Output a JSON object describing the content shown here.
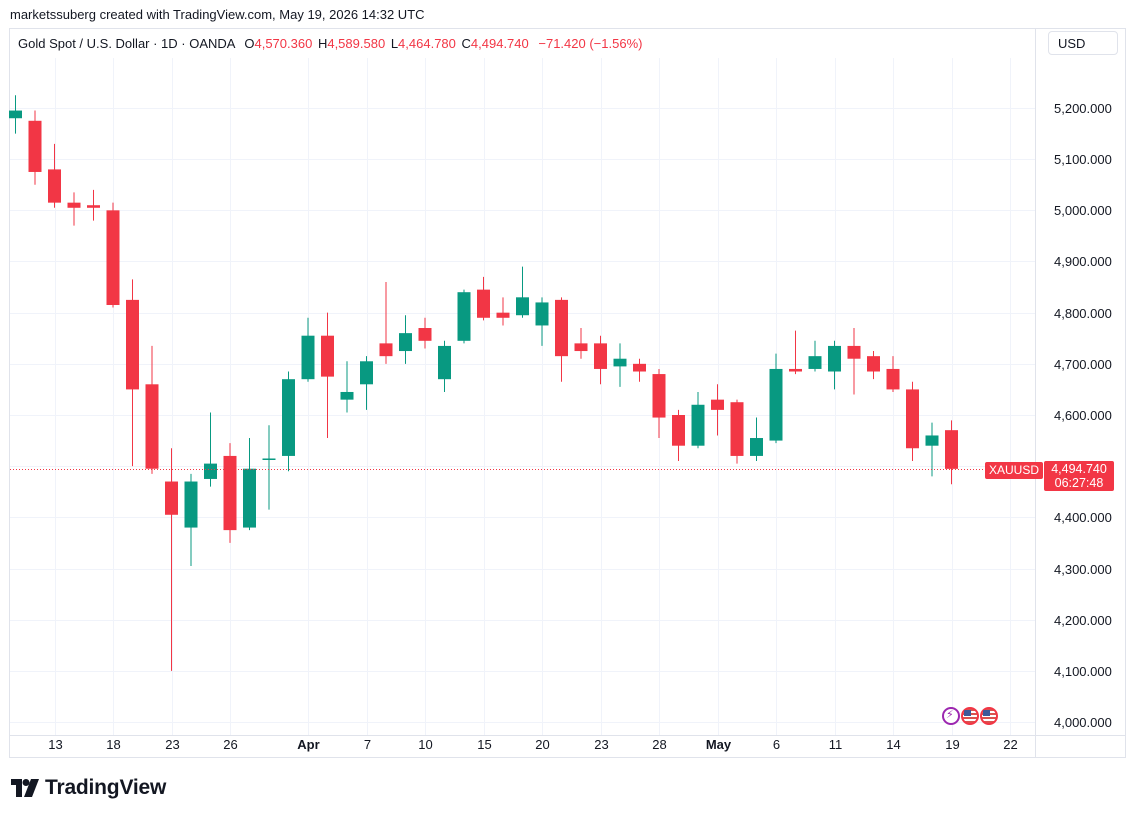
{
  "credit": "marketssuberg created with TradingView.com, May 19, 2026 14:32 UTC",
  "legend": {
    "symbol": "Gold Spot / U.S. Dollar · 1D · OANDA",
    "o_label": "O",
    "o_value": "4,570.360",
    "h_label": "H",
    "h_value": "4,589.580",
    "l_label": "L",
    "l_value": "4,464.780",
    "c_label": "C",
    "c_value": "4,494.740",
    "change": "−71.420 (−1.56%)"
  },
  "currency_button": "USD",
  "last_price": {
    "symbol": "XAUUSD",
    "price": "4,494.740",
    "countdown": "06:27:48",
    "value": 4494.74
  },
  "branding": "TradingView",
  "colors": {
    "up": "#089981",
    "down": "#f23645",
    "grid": "#f0f3fa",
    "text": "#131722",
    "border": "#e0e3eb"
  },
  "event_icons": [
    "bolt-icon",
    "us-flag-icon",
    "us-flag-icon"
  ],
  "chart_data": {
    "type": "candlestick",
    "title": "Gold Spot / U.S. Dollar · 1D · OANDA",
    "ylim": [
      3955,
      5290
    ],
    "y_ticks": [
      4000,
      4100,
      4200,
      4300,
      4400,
      4500,
      4600,
      4700,
      4800,
      4900,
      5000,
      5100,
      5200
    ],
    "y_tick_labels": [
      "4,000.000",
      "4,100.000",
      "4,200.000",
      "4,300.000",
      "4,400.000",
      "4,500.000",
      "4,600.000",
      "4,700.000",
      "4,800.000",
      "4,900.000",
      "5,000.000",
      "5,100.000",
      "5,200.000"
    ],
    "x_ticks": [
      {
        "i": 2,
        "label": "13",
        "bold": false
      },
      {
        "i": 5,
        "label": "18",
        "bold": false
      },
      {
        "i": 8,
        "label": "23",
        "bold": false
      },
      {
        "i": 11,
        "label": "26",
        "bold": false
      },
      {
        "i": 15,
        "label": "Apr",
        "bold": true
      },
      {
        "i": 18,
        "label": "7",
        "bold": false
      },
      {
        "i": 21,
        "label": "10",
        "bold": false
      },
      {
        "i": 24,
        "label": "15",
        "bold": false
      },
      {
        "i": 27,
        "label": "20",
        "bold": false
      },
      {
        "i": 30,
        "label": "23",
        "bold": false
      },
      {
        "i": 33,
        "label": "28",
        "bold": false
      },
      {
        "i": 36,
        "label": "May",
        "bold": true
      },
      {
        "i": 39,
        "label": "6",
        "bold": false
      },
      {
        "i": 42,
        "label": "11",
        "bold": false
      },
      {
        "i": 45,
        "label": "14",
        "bold": false
      },
      {
        "i": 48,
        "label": "19",
        "bold": false
      },
      {
        "i": 51,
        "label": "22",
        "bold": false
      }
    ],
    "candles": [
      {
        "o": 5180,
        "h": 5225,
        "l": 5150,
        "c": 5195
      },
      {
        "o": 5175,
        "h": 5195,
        "l": 5050,
        "c": 5075
      },
      {
        "o": 5080,
        "h": 5130,
        "l": 5005,
        "c": 5015
      },
      {
        "o": 5015,
        "h": 5035,
        "l": 4970,
        "c": 5005
      },
      {
        "o": 5010,
        "h": 5040,
        "l": 4980,
        "c": 5005
      },
      {
        "o": 5000,
        "h": 5015,
        "l": 4810,
        "c": 4815
      },
      {
        "o": 4825,
        "h": 4865,
        "l": 4500,
        "c": 4650
      },
      {
        "o": 4660,
        "h": 4735,
        "l": 4485,
        "c": 4495
      },
      {
        "o": 4470,
        "h": 4535,
        "l": 4100,
        "c": 4405
      },
      {
        "o": 4380,
        "h": 4485,
        "l": 4305,
        "c": 4470
      },
      {
        "o": 4475,
        "h": 4605,
        "l": 4460,
        "c": 4505
      },
      {
        "o": 4520,
        "h": 4545,
        "l": 4350,
        "c": 4375
      },
      {
        "o": 4380,
        "h": 4555,
        "l": 4375,
        "c": 4495
      },
      {
        "o": 4515,
        "h": 4580,
        "l": 4415,
        "c": 4515
      },
      {
        "o": 4520,
        "h": 4685,
        "l": 4490,
        "c": 4670
      },
      {
        "o": 4670,
        "h": 4790,
        "l": 4665,
        "c": 4755
      },
      {
        "o": 4755,
        "h": 4800,
        "l": 4555,
        "c": 4675
      },
      {
        "o": 4630,
        "h": 4705,
        "l": 4605,
        "c": 4645
      },
      {
        "o": 4660,
        "h": 4715,
        "l": 4610,
        "c": 4705
      },
      {
        "o": 4740,
        "h": 4860,
        "l": 4700,
        "c": 4715
      },
      {
        "o": 4725,
        "h": 4795,
        "l": 4700,
        "c": 4760
      },
      {
        "o": 4770,
        "h": 4790,
        "l": 4730,
        "c": 4745
      },
      {
        "o": 4670,
        "h": 4745,
        "l": 4645,
        "c": 4735
      },
      {
        "o": 4745,
        "h": 4845,
        "l": 4740,
        "c": 4840
      },
      {
        "o": 4845,
        "h": 4870,
        "l": 4785,
        "c": 4790
      },
      {
        "o": 4800,
        "h": 4830,
        "l": 4775,
        "c": 4790
      },
      {
        "o": 4795,
        "h": 4890,
        "l": 4790,
        "c": 4830
      },
      {
        "o": 4775,
        "h": 4830,
        "l": 4735,
        "c": 4820
      },
      {
        "o": 4825,
        "h": 4830,
        "l": 4665,
        "c": 4715
      },
      {
        "o": 4740,
        "h": 4770,
        "l": 4710,
        "c": 4725
      },
      {
        "o": 4740,
        "h": 4755,
        "l": 4660,
        "c": 4690
      },
      {
        "o": 4695,
        "h": 4740,
        "l": 4655,
        "c": 4710
      },
      {
        "o": 4700,
        "h": 4710,
        "l": 4665,
        "c": 4685
      },
      {
        "o": 4680,
        "h": 4690,
        "l": 4555,
        "c": 4595
      },
      {
        "o": 4600,
        "h": 4610,
        "l": 4510,
        "c": 4540
      },
      {
        "o": 4540,
        "h": 4645,
        "l": 4535,
        "c": 4620
      },
      {
        "o": 4630,
        "h": 4660,
        "l": 4560,
        "c": 4610
      },
      {
        "o": 4625,
        "h": 4630,
        "l": 4505,
        "c": 4520
      },
      {
        "o": 4520,
        "h": 4595,
        "l": 4510,
        "c": 4555
      },
      {
        "o": 4550,
        "h": 4720,
        "l": 4545,
        "c": 4690
      },
      {
        "o": 4690,
        "h": 4765,
        "l": 4680,
        "c": 4685
      },
      {
        "o": 4690,
        "h": 4745,
        "l": 4685,
        "c": 4715
      },
      {
        "o": 4685,
        "h": 4745,
        "l": 4650,
        "c": 4735
      },
      {
        "o": 4735,
        "h": 4770,
        "l": 4640,
        "c": 4710
      },
      {
        "o": 4715,
        "h": 4725,
        "l": 4670,
        "c": 4685
      },
      {
        "o": 4690,
        "h": 4715,
        "l": 4645,
        "c": 4650
      },
      {
        "o": 4650,
        "h": 4665,
        "l": 4510,
        "c": 4535
      },
      {
        "o": 4540,
        "h": 4585,
        "l": 4480,
        "c": 4560
      },
      {
        "o": 4570.36,
        "h": 4589.58,
        "l": 4464.78,
        "c": 4494.74
      }
    ]
  }
}
